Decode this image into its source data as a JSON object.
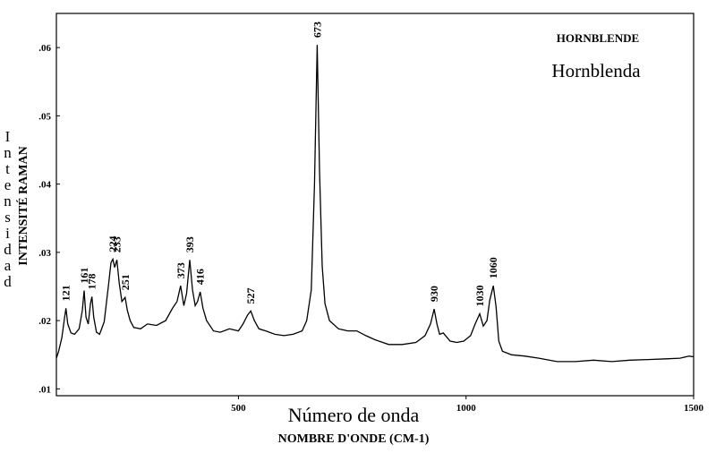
{
  "chart_data": {
    "type": "line",
    "title": "HORNBLENDE",
    "subtitle": "Hornblenda",
    "x_label": "Número de onda",
    "x_label_2": "NOMBRE D'ONDE (CM-1)",
    "y_label": "INTENSITÉ RAMAN",
    "y_label_2": "Intensidad",
    "xlim": [
      100,
      1500
    ],
    "xticks": [
      500,
      1000,
      1500
    ],
    "ylim": [
      0.009,
      0.065
    ],
    "yticks": [
      {
        "value": 0.01,
        "label": ".01"
      },
      {
        "value": 0.02,
        "label": ".02"
      },
      {
        "value": 0.03,
        "label": ".03"
      },
      {
        "value": 0.04,
        "label": ".04"
      },
      {
        "value": 0.05,
        "label": ".05"
      },
      {
        "value": 0.06,
        "label": ".06"
      }
    ],
    "peaks": [
      121,
      161,
      178,
      224,
      233,
      251,
      373,
      393,
      416,
      527,
      673,
      930,
      1030,
      1060
    ],
    "x": [
      100,
      105,
      112,
      118,
      121,
      125,
      132,
      140,
      150,
      157,
      161,
      165,
      170,
      175,
      178,
      182,
      188,
      195,
      205,
      215,
      220,
      224,
      228,
      233,
      238,
      244,
      251,
      256,
      262,
      270,
      285,
      300,
      320,
      340,
      355,
      365,
      373,
      380,
      386,
      393,
      399,
      405,
      410,
      416,
      422,
      430,
      445,
      460,
      480,
      500,
      510,
      520,
      527,
      535,
      545,
      560,
      580,
      600,
      620,
      640,
      650,
      660,
      667,
      673,
      678,
      684,
      690,
      700,
      720,
      740,
      760,
      780,
      800,
      830,
      860,
      890,
      910,
      922,
      930,
      936,
      942,
      950,
      965,
      980,
      995,
      1010,
      1020,
      1030,
      1038,
      1046,
      1052,
      1060,
      1066,
      1072,
      1080,
      1100,
      1130,
      1160,
      1200,
      1240,
      1280,
      1320,
      1360,
      1400,
      1440,
      1470,
      1490,
      1500
    ],
    "series": [
      {
        "color": "#000000",
        "values": [
          0.0145,
          0.0155,
          0.0175,
          0.0205,
          0.0218,
          0.0195,
          0.0182,
          0.018,
          0.0188,
          0.0215,
          0.0244,
          0.0205,
          0.0195,
          0.0225,
          0.0235,
          0.0205,
          0.0183,
          0.018,
          0.0198,
          0.0255,
          0.0285,
          0.029,
          0.0278,
          0.0289,
          0.0255,
          0.0228,
          0.0234,
          0.0215,
          0.02,
          0.019,
          0.0188,
          0.0195,
          0.0193,
          0.02,
          0.0218,
          0.0228,
          0.0251,
          0.0222,
          0.024,
          0.0289,
          0.0245,
          0.0222,
          0.0228,
          0.0242,
          0.0218,
          0.02,
          0.0185,
          0.0183,
          0.0188,
          0.0185,
          0.0195,
          0.0208,
          0.0214,
          0.02,
          0.0188,
          0.0185,
          0.018,
          0.0178,
          0.018,
          0.0185,
          0.02,
          0.0245,
          0.04,
          0.0604,
          0.042,
          0.028,
          0.0225,
          0.02,
          0.0188,
          0.0185,
          0.0185,
          0.0178,
          0.0172,
          0.0165,
          0.0165,
          0.0168,
          0.0178,
          0.0195,
          0.0217,
          0.0195,
          0.018,
          0.0182,
          0.017,
          0.0168,
          0.017,
          0.0178,
          0.0195,
          0.021,
          0.0192,
          0.02,
          0.023,
          0.0251,
          0.022,
          0.017,
          0.0155,
          0.015,
          0.0148,
          0.0145,
          0.014,
          0.014,
          0.0142,
          0.014,
          0.0142,
          0.0143,
          0.0144,
          0.0145,
          0.0148,
          0.0147
        ]
      }
    ]
  }
}
